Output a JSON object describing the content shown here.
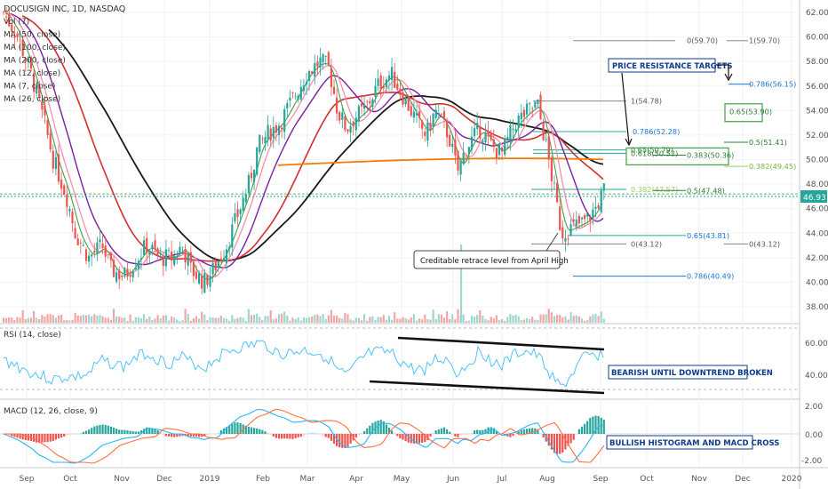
{
  "header": {
    "title": "DOCUSIGN INC, 1D, NASDAQ",
    "indicators": [
      "Vol (7)",
      "MA (50, close)",
      "MA (100, close)",
      "MA (200, close)",
      "MA (12, close)",
      "MA (7, close)",
      "MA (26, close)"
    ]
  },
  "price_axis": {
    "ticks": [
      "62.00",
      "60.00",
      "58.00",
      "56.00",
      "54.00",
      "52.00",
      "50.00",
      "48.00",
      "46.00",
      "44.00",
      "42.00",
      "40.00",
      "38.00"
    ],
    "last_price": "46.93"
  },
  "rsi_axis": {
    "ticks": [
      "60.00",
      "40.00"
    ]
  },
  "macd_axis": {
    "ticks": [
      "2.00",
      "0.00",
      "-2.00"
    ]
  },
  "time_axis": {
    "ticks": [
      "Sep",
      "Oct",
      "Nov",
      "Dec",
      "2019",
      "Feb",
      "Mar",
      "Apr",
      "May",
      "Jun",
      "Jul",
      "Aug",
      "Sep",
      "Oct",
      "Nov",
      "Dec",
      "2020"
    ]
  },
  "fib_labels": {
    "a0": "0(59.70)",
    "a1": "1(59.70)",
    "b1": "1(54.78)",
    "b786": "0.786(52.28)",
    "b65": "0.65(50.79)",
    "b618": "0.618(50.52)",
    "b382": "0.382(47.57)",
    "b0": "0(43.12)",
    "c786": "0.786(56.15)",
    "c65": "0.65(53.90)",
    "c5": "0.5(51.41)",
    "c382a": "0.383(50.36)",
    "c382b": "0.382(49.45)",
    "c5b": "0.5(47.48)",
    "c65b": "0.65(43.81)",
    "c0": "0(43.12)",
    "c786b": "0.786(40.49)"
  },
  "annotations": {
    "price_targets": "PRICE RESISTANCE TARGETS",
    "retrace": "Creditable retrace level from April High",
    "rsi_note": "BEARISH UNTIL DOWNTREND BROKEN",
    "macd_note": "BULLISH HISTOGRAM AND MACD CROSS"
  },
  "panes": {
    "rsi_title": "RSI (14, close)",
    "macd_title": "MACD (12, 26, close, 9)"
  },
  "colors": {
    "up": "#26a69a",
    "down": "#ef5350",
    "ma_black": "#1a1a1a",
    "ma_red": "#d32f2f",
    "ma_orange": "#f57c00",
    "ma_purple": "#7b1fa2",
    "ma_pink": "#f48fb1",
    "rsi": "#4fc3f7",
    "macd": "#29b6f6",
    "signal": "#ff7043",
    "note_blue": "#0d3b8e"
  },
  "chart_data": {
    "type": "candlestick",
    "title": "DOCUSIGN INC, 1D, NASDAQ",
    "x_categories": [
      "Sep",
      "Oct",
      "Nov",
      "Dec",
      "2019",
      "Feb",
      "Mar",
      "Apr",
      "May",
      "Jun",
      "Jul",
      "Aug",
      "Sep"
    ],
    "approx_close_by_month": [
      59.5,
      48.0,
      41.0,
      40.0,
      41.5,
      51.0,
      56.5,
      52.0,
      52.5,
      51.5,
      51.0,
      44.0,
      47.0
    ],
    "ylim": [
      37,
      62.5
    ],
    "fib_levels": [
      59.7,
      56.15,
      54.78,
      53.9,
      52.28,
      51.41,
      50.79,
      50.52,
      50.36,
      49.45,
      47.57,
      47.48,
      43.81,
      43.12,
      40.49
    ],
    "rsi_ylim": [
      20,
      75
    ],
    "macd_ylim": [
      -2.5,
      2.5
    ]
  }
}
